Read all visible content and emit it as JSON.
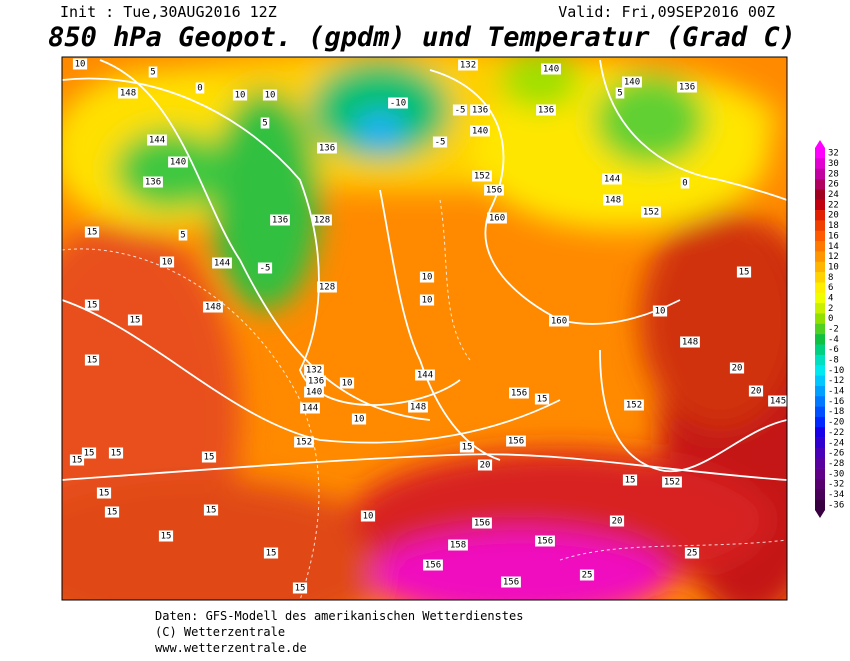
{
  "header": {
    "init": "Init : Tue,30AUG2016 12Z",
    "valid": "Valid: Fri,09SEP2016 00Z",
    "title": "850 hPa Geopot. (gpdm) und Temperatur (Grad C)"
  },
  "colorbar": {
    "ticks": [
      32,
      30,
      28,
      26,
      24,
      22,
      20,
      18,
      16,
      14,
      12,
      10,
      8,
      6,
      4,
      2,
      0,
      -2,
      -4,
      -6,
      -8,
      -10,
      -12,
      -14,
      -16,
      -18,
      -20,
      -22,
      -24,
      -26,
      -28,
      -30,
      -32,
      -34,
      -36
    ],
    "colors": [
      "#ff00ff",
      "#e000d0",
      "#c000a0",
      "#b00060",
      "#a00020",
      "#c00010",
      "#e02000",
      "#f04000",
      "#ff5a00",
      "#ff7800",
      "#ff9600",
      "#ffb400",
      "#ffd200",
      "#ffee00",
      "#f0ff00",
      "#c8f000",
      "#90e000",
      "#50d020",
      "#10c040",
      "#00d080",
      "#00e0c0",
      "#00e8f0",
      "#00c8ff",
      "#00a0ff",
      "#0078ff",
      "#0050ff",
      "#0028ff",
      "#1800e8",
      "#3000d0",
      "#4800b8",
      "#5800a0",
      "#600088",
      "#580070",
      "#480058",
      "#380040"
    ]
  },
  "map": {
    "labels": [
      "10",
      "5",
      "148",
      "0",
      "10",
      "10",
      "132",
      "140",
      "140",
      "136",
      "5",
      "144",
      "140",
      "136",
      "5",
      "136",
      "-10",
      "-5",
      "136",
      "140",
      "136",
      "-5",
      "152",
      "156",
      "144",
      "148",
      "152",
      "0",
      "136",
      "128",
      "-5",
      "144",
      "15",
      "10",
      "5",
      "10",
      "10",
      "160",
      "160",
      "10",
      "148",
      "15",
      "128",
      "148",
      "15",
      "15",
      "15",
      "132",
      "136",
      "140",
      "144",
      "10",
      "10",
      "144",
      "148",
      "156",
      "15",
      "152",
      "20",
      "20",
      "145",
      "152",
      "15",
      "20",
      "156",
      "15",
      "15",
      "15",
      "15",
      "15",
      "152",
      "15",
      "15",
      "15",
      "15",
      "15",
      "10",
      "20",
      "156",
      "156",
      "156",
      "158",
      "156",
      "25",
      "25",
      "15"
    ]
  },
  "footer": [
    "Daten: GFS-Modell des amerikanischen Wetterdienstes",
    "(C) Wetterzentrale",
    "www.wetterzentrale.de"
  ]
}
